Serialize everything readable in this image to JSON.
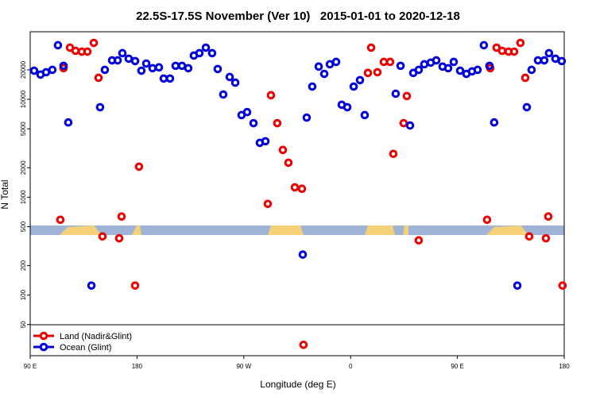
{
  "chart_data": {
    "type": "scatter",
    "title": "22.5S-17.5S November (Ver 10)   2015-01-01 to 2020-12-18",
    "x_label": "Longitude (deg E)",
    "y_label": "N Total",
    "xlim": [
      90,
      540
    ],
    "ylim": [
      24,
      49000
    ],
    "log_y": true,
    "legend": "lower left",
    "xticks": [
      {
        "value": 90,
        "label": "90 E"
      },
      180,
      {
        "value": 270,
        "label": "90 W"
      },
      {
        "value": 360,
        "label": "0"
      },
      {
        "value": 450,
        "label": "90 E"
      },
      {
        "value": 540,
        "label": "180"
      }
    ],
    "yticks": [
      50,
      100,
      200,
      500,
      1000,
      2000,
      5000,
      10000,
      20000
    ],
    "series": [
      {
        "name": "Land (Nadir&Glint)",
        "color": "#ee0000",
        "x": [
          115.4,
          118.1,
          123.5,
          128.2,
          133.5,
          138.2,
          143.6,
          147.6,
          150.9,
          165.0,
          167.0,
          178.4,
          181.7,
          290.2,
          292.9,
          298.2,
          302.9,
          307.6,
          313.0,
          319.0,
          320.3,
          374.6,
          377.3,
          382.6,
          388.0,
          393.3,
          396.0,
          404.7,
          407.4,
          417.4,
          475.0,
          477.7,
          483.0,
          487.7,
          493.1,
          497.8,
          503.1,
          507.2,
          510.5,
          524.6,
          526.6,
          538.6
        ],
        "values": [
          588,
          20800,
          33700,
          31300,
          30700,
          30700,
          37700,
          16600,
          397,
          380,
          634,
          125,
          2050,
          854,
          11000,
          5700,
          3040,
          2250,
          1260,
          1220,
          31,
          18600,
          33700,
          18900,
          24100,
          24100,
          2770,
          5700,
          10800,
          362,
          588,
          20800,
          33700,
          31300,
          30700,
          30700,
          37700,
          16600,
          397,
          380,
          634,
          125
        ]
      },
      {
        "name": "Ocean (Glint)",
        "color": "#0000dd",
        "x": [
          93.3,
          98.7,
          103.4,
          108.7,
          113.4,
          118.1,
          122.1,
          141.6,
          148.9,
          152.9,
          159.0,
          163.7,
          167.7,
          173.0,
          178.4,
          183.7,
          187.8,
          193.1,
          198.5,
          202.5,
          207.8,
          212.5,
          217.9,
          223.2,
          227.9,
          232.6,
          238.0,
          243.3,
          248.0,
          252.7,
          258.1,
          262.8,
          268.1,
          272.8,
          278.2,
          283.5,
          288.2,
          319.7,
          323.0,
          327.7,
          333.1,
          337.8,
          342.5,
          347.8,
          352.5,
          357.2,
          362.6,
          367.9,
          371.9,
          398.0,
          402.1,
          410.1,
          412.8,
          417.4,
          422.1,
          427.5,
          432.2,
          437.5,
          442.2,
          446.9,
          452.3,
          457.6,
          462.3,
          467.0,
          472.3,
          477.0,
          481.0,
          500.5,
          508.5,
          512.5,
          517.9,
          523.2,
          527.2,
          532.6,
          537.9
        ],
        "values": [
          19600,
          17900,
          18900,
          20000,
          35700,
          22000,
          5800,
          125,
          8300,
          20000,
          25000,
          25000,
          29600,
          26000,
          24600,
          19600,
          23200,
          20800,
          21200,
          16300,
          16300,
          22000,
          22000,
          20800,
          28000,
          29600,
          33700,
          29600,
          20400,
          11200,
          16900,
          14800,
          6900,
          7400,
          5700,
          3590,
          3730,
          259,
          6500,
          13500,
          21600,
          18200,
          22800,
          24100,
          8800,
          8300,
          13500,
          15700,
          6900,
          11400,
          22000,
          5400,
          18600,
          20000,
          22800,
          23700,
          25000,
          21600,
          20800,
          24100,
          19600,
          18200,
          19300,
          20000,
          35700,
          22000,
          5800,
          125,
          8300,
          20000,
          25000,
          25000,
          29600,
          26000,
          24600
        ]
      }
    ]
  }
}
